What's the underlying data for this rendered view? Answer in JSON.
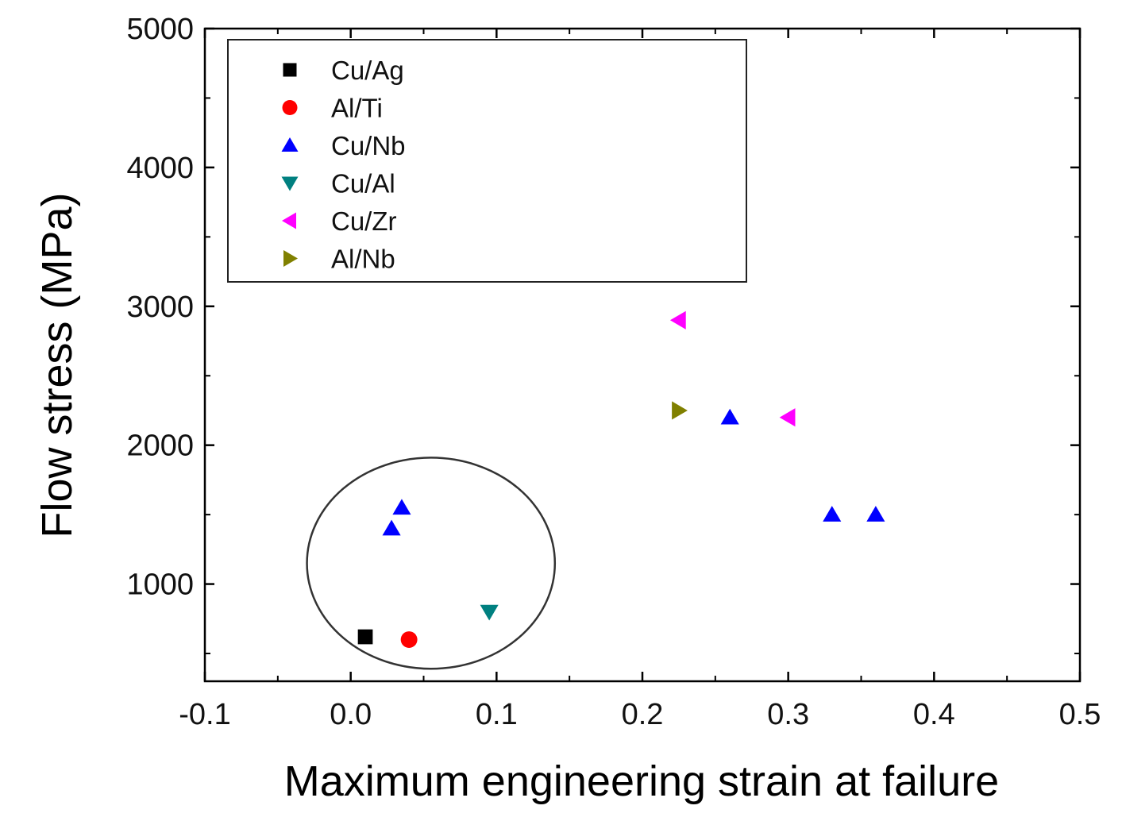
{
  "chart_data": {
    "type": "scatter",
    "title": "",
    "xlabel": "Maximum engineering strain at failure",
    "ylabel": "Flow stress (MPa)",
    "xlim": [
      -0.1,
      0.5
    ],
    "ylim": [
      300,
      5000
    ],
    "xticks": [
      -0.1,
      0.0,
      0.1,
      0.2,
      0.3,
      0.4,
      0.5
    ],
    "xtick_labels": [
      "-0.1",
      "0.0",
      "0.1",
      "0.2",
      "0.3",
      "0.4",
      "0.5"
    ],
    "yticks": [
      1000,
      2000,
      3000,
      4000,
      5000
    ],
    "ytick_labels": [
      "1000",
      "2000",
      "3000",
      "4000",
      "5000"
    ],
    "grid": false,
    "legend_position": "top-left",
    "series": [
      {
        "name": "Cu/Ag",
        "marker": "square",
        "color": "#000000",
        "points": [
          [
            0.01,
            620
          ]
        ]
      },
      {
        "name": "Al/Ti",
        "marker": "circle",
        "color": "#ff0000",
        "points": [
          [
            0.04,
            600
          ]
        ]
      },
      {
        "name": "Cu/Nb",
        "marker": "triangle-up",
        "color": "#0000ff",
        "points": [
          [
            0.028,
            1400
          ],
          [
            0.035,
            1550
          ],
          [
            0.26,
            2200
          ],
          [
            0.33,
            1500
          ],
          [
            0.36,
            1500
          ]
        ]
      },
      {
        "name": "Cu/Al",
        "marker": "triangle-down",
        "color": "#008080",
        "points": [
          [
            0.095,
            800
          ]
        ]
      },
      {
        "name": "Cu/Zr",
        "marker": "triangle-left",
        "color": "#ff00ff",
        "points": [
          [
            0.225,
            2900
          ],
          [
            0.3,
            2200
          ]
        ]
      },
      {
        "name": "Al/Nb",
        "marker": "triangle-right",
        "color": "#808000",
        "points": [
          [
            0.225,
            2250
          ]
        ]
      }
    ],
    "annotations": [
      {
        "type": "ellipse",
        "description": "circled cluster of low-strain points",
        "center": [
          0.055,
          1150
        ],
        "radius_x": 0.085,
        "radius_y": 760,
        "color": "#333333"
      }
    ]
  }
}
